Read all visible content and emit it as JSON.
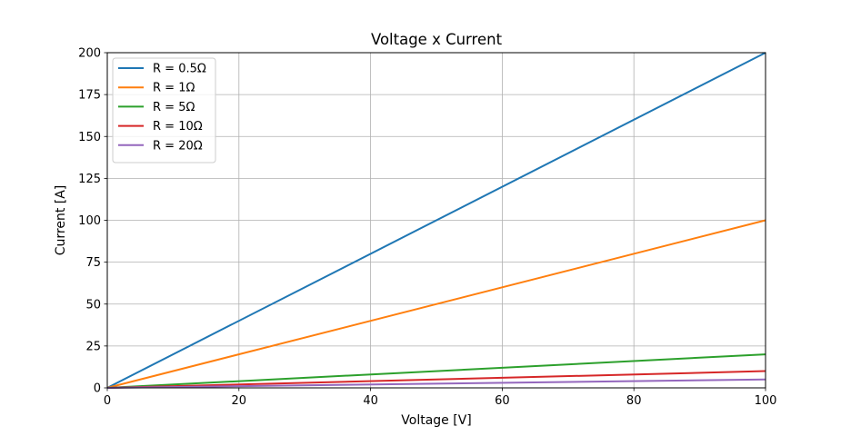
{
  "chart_data": {
    "type": "line",
    "title": "Voltage x Current",
    "xlabel": "Voltage [V]",
    "ylabel": "Current [A]",
    "xlim": [
      0,
      100
    ],
    "ylim": [
      0,
      200
    ],
    "xticks": [
      0,
      20,
      40,
      60,
      80,
      100
    ],
    "yticks": [
      0,
      25,
      50,
      75,
      100,
      125,
      150,
      175,
      200
    ],
    "grid": true,
    "legend_position": "top-left",
    "x": [
      0,
      100
    ],
    "series": [
      {
        "name": "R = 0.5Ω",
        "values": [
          0,
          200
        ],
        "color": "#1f77b4"
      },
      {
        "name": "R = 1Ω",
        "values": [
          0,
          100
        ],
        "color": "#ff7f0e"
      },
      {
        "name": "R = 5Ω",
        "values": [
          0,
          20
        ],
        "color": "#2ca02c"
      },
      {
        "name": "R = 10Ω",
        "values": [
          0,
          10
        ],
        "color": "#d62728"
      },
      {
        "name": "R = 20Ω",
        "values": [
          0,
          5
        ],
        "color": "#9467bd"
      }
    ]
  }
}
